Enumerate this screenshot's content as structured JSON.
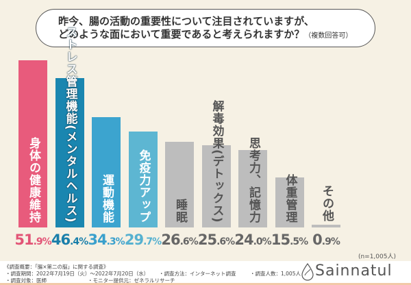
{
  "question": {
    "line1": "昨今、腸の活動の重要性について注目されていますが、",
    "line2": "どのような面において重要であると考えられますか？",
    "note": "（複数回答可）"
  },
  "chart_data": {
    "type": "bar",
    "categories": [
      "身体の健康維持",
      "ストレス管理機能(メンタルヘルス)",
      "運動機能",
      "免疫力アップ",
      "睡眠",
      "解毒効果(デトックス)",
      "思考力、記憶力",
      "体重管理",
      "その他"
    ],
    "values": [
      51.9,
      46.4,
      34.3,
      29.7,
      26.6,
      25.6,
      24.0,
      15.5,
      0.9
    ],
    "value_labels_int": [
      "51",
      "46",
      "34",
      "29",
      "26",
      "25",
      "24",
      "15",
      "0"
    ],
    "value_labels_dec": [
      ".9%",
      ".4%",
      ".3%",
      ".7%",
      ".6%",
      ".6%",
      ".0%",
      ".5%",
      ".9%"
    ],
    "colors": [
      "#e85b7c",
      "#1a86b0",
      "#3ca4cf",
      "#5db6d2",
      "#bdbdbd",
      "#bdbdbd",
      "#bdbdbd",
      "#bdbdbd",
      "#bdbdbd"
    ],
    "value_colors": [
      "#e25476",
      "#1a7faa",
      "#3aa0cc",
      "#56b1d0",
      "#666666",
      "#666666",
      "#666666",
      "#666666",
      "#666666"
    ],
    "label_colors": [
      "#ffffff",
      "#ffffff",
      "#ffffff",
      "#ffffff",
      "#555555",
      "#555555",
      "#555555",
      "#555555",
      "#555555"
    ],
    "ylim": [
      0,
      55
    ],
    "grid": false,
    "sample_note": "(n=1,005人)"
  },
  "footer": {
    "summary": "《調査概要：「腸×第二の脳」に関する調査》",
    "period": "・調査期間：2022年7月19日（火）～2022年7月20日（水）",
    "method": "・調査方法：インターネット調査",
    "count": "・調査人数：1,005人",
    "target": "・調査対象：医師",
    "provider": "・モニター提供元：ゼネラルリサーチ",
    "brand": "Sainnatul"
  }
}
